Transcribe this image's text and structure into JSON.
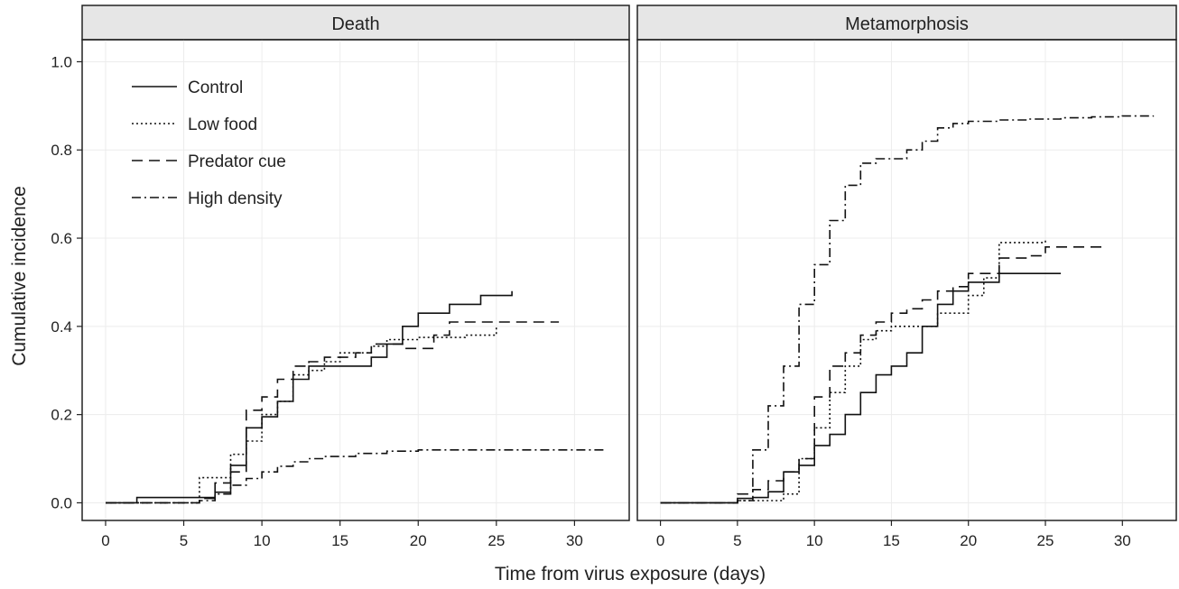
{
  "figure": {
    "xlabel": "Time from virus exposure (days)",
    "ylabel": "Cumulative incidence"
  },
  "chart_data": [
    {
      "type": "line",
      "title": "Death",
      "xlabel": "Time from virus exposure (days)",
      "ylabel": "Cumulative incidence",
      "xlim": [
        -1.5,
        33.5
      ],
      "ylim": [
        -0.04,
        1.05
      ],
      "xticks": [
        0,
        5,
        10,
        15,
        20,
        25,
        30
      ],
      "yticks": [
        0.0,
        0.2,
        0.4,
        0.6,
        0.8,
        1.0
      ],
      "grid": true,
      "legend": "top-left",
      "series": [
        {
          "name": "Control",
          "style": "solid",
          "x": [
            0,
            2,
            6,
            7,
            8,
            9,
            10,
            11,
            12,
            13,
            16,
            17,
            18,
            19,
            20,
            22,
            24,
            26
          ],
          "y": [
            0.0,
            0.012,
            0.012,
            0.024,
            0.085,
            0.17,
            0.195,
            0.23,
            0.28,
            0.31,
            0.31,
            0.33,
            0.36,
            0.4,
            0.43,
            0.45,
            0.47,
            0.48
          ]
        },
        {
          "name": "Low food",
          "style": "dotted",
          "x": [
            0,
            6,
            8,
            9,
            10,
            11,
            12,
            13,
            14,
            15,
            17,
            18,
            20,
            23,
            25
          ],
          "y": [
            0.0,
            0.057,
            0.11,
            0.14,
            0.2,
            0.23,
            0.29,
            0.3,
            0.32,
            0.34,
            0.355,
            0.37,
            0.375,
            0.38,
            0.4
          ]
        },
        {
          "name": "Predator cue",
          "style": "dashed",
          "x": [
            0,
            6,
            7,
            8,
            9,
            10,
            11,
            12,
            13,
            14,
            16,
            17,
            19,
            21,
            22,
            29
          ],
          "y": [
            0.0,
            0.01,
            0.045,
            0.07,
            0.21,
            0.24,
            0.28,
            0.31,
            0.32,
            0.33,
            0.34,
            0.36,
            0.35,
            0.38,
            0.41,
            0.41
          ]
        },
        {
          "name": "High density",
          "style": "dash-dot",
          "x": [
            0,
            6,
            7,
            8,
            9,
            10,
            11,
            12,
            13,
            14,
            16,
            18,
            20,
            22,
            24,
            26,
            28,
            30,
            32
          ],
          "y": [
            0.0,
            0.005,
            0.02,
            0.04,
            0.055,
            0.07,
            0.083,
            0.093,
            0.1,
            0.105,
            0.112,
            0.117,
            0.12,
            0.12,
            0.12,
            0.12,
            0.12,
            0.12,
            0.12
          ]
        }
      ]
    },
    {
      "type": "line",
      "title": "Metamorphosis",
      "xlabel": "Time from virus exposure (days)",
      "ylabel": "Cumulative incidence",
      "xlim": [
        -1.5,
        33.5
      ],
      "ylim": [
        -0.04,
        1.05
      ],
      "xticks": [
        0,
        5,
        10,
        15,
        20,
        25,
        30
      ],
      "yticks": [
        0.0,
        0.2,
        0.4,
        0.6,
        0.8,
        1.0
      ],
      "grid": true,
      "series": [
        {
          "name": "Control",
          "style": "solid",
          "x": [
            0,
            5,
            6,
            7,
            8,
            9,
            10,
            11,
            12,
            13,
            14,
            15,
            16,
            17,
            18,
            19,
            20,
            22,
            26
          ],
          "y": [
            0.0,
            0.01,
            0.012,
            0.025,
            0.07,
            0.085,
            0.13,
            0.155,
            0.2,
            0.25,
            0.29,
            0.31,
            0.34,
            0.4,
            0.45,
            0.48,
            0.5,
            0.52,
            0.52
          ]
        },
        {
          "name": "Low food",
          "style": "dotted",
          "x": [
            0,
            5,
            8,
            9,
            10,
            11,
            12,
            13,
            14,
            15,
            17,
            18,
            20,
            21,
            22,
            25
          ],
          "y": [
            0.0,
            0.005,
            0.02,
            0.1,
            0.17,
            0.25,
            0.31,
            0.37,
            0.39,
            0.4,
            0.4,
            0.43,
            0.47,
            0.51,
            0.59,
            0.6
          ]
        },
        {
          "name": "Predator cue",
          "style": "dashed",
          "x": [
            0,
            5,
            6,
            7,
            8,
            9,
            10,
            11,
            12,
            13,
            14,
            15,
            16,
            17,
            18,
            19,
            20,
            22,
            24,
            25,
            29
          ],
          "y": [
            0.0,
            0.02,
            0.03,
            0.05,
            0.07,
            0.1,
            0.24,
            0.31,
            0.34,
            0.38,
            0.41,
            0.43,
            0.44,
            0.46,
            0.48,
            0.49,
            0.52,
            0.555,
            0.56,
            0.58,
            0.58
          ]
        },
        {
          "name": "High density",
          "style": "dash-dot",
          "x": [
            0,
            5,
            6,
            7,
            8,
            9,
            10,
            11,
            12,
            13,
            14,
            16,
            17,
            18,
            19,
            20,
            22,
            24,
            26,
            28,
            30,
            32
          ],
          "y": [
            0.0,
            0.005,
            0.12,
            0.22,
            0.31,
            0.45,
            0.54,
            0.64,
            0.72,
            0.77,
            0.78,
            0.8,
            0.82,
            0.85,
            0.86,
            0.865,
            0.868,
            0.87,
            0.873,
            0.875,
            0.877,
            0.878
          ]
        }
      ]
    }
  ]
}
